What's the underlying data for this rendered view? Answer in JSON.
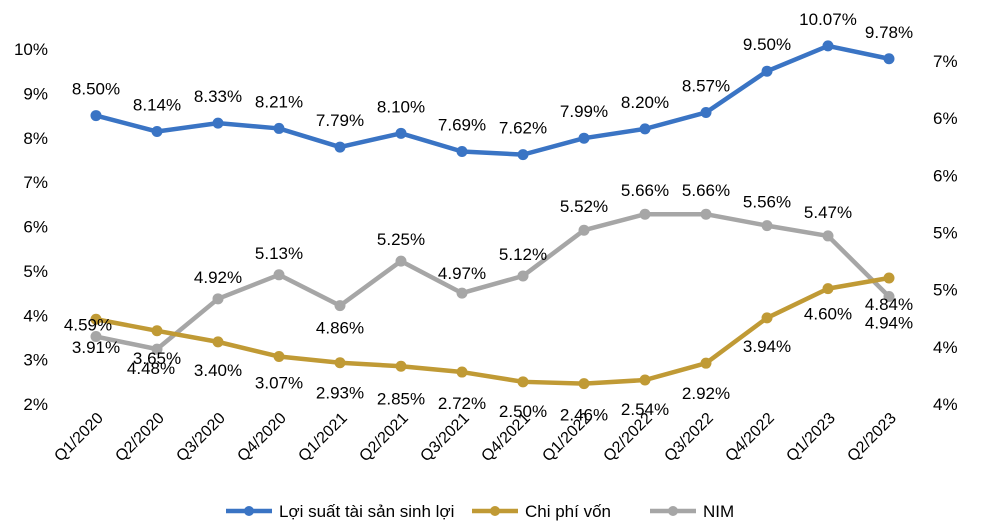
{
  "chart_data": {
    "type": "line",
    "categories": [
      "Q1/2020",
      "Q2/2020",
      "Q3/2020",
      "Q4/2020",
      "Q1/2021",
      "Q2/2021",
      "Q3/2021",
      "Q4/2021",
      "Q1/2022",
      "Q2/2022",
      "Q3/2022",
      "Q4/2022",
      "Q1/2023",
      "Q2/2023"
    ],
    "y_left": {
      "ticks": [
        "2%",
        "3%",
        "4%",
        "5%",
        "6%",
        "7%",
        "8%",
        "9%",
        "10%"
      ],
      "ylim": [
        2,
        10
      ]
    },
    "y_right": {
      "ticks": [
        "4%",
        "4%",
        "5%",
        "5%",
        "6%",
        "6%",
        "7%"
      ],
      "ylim": [
        4,
        7
      ]
    },
    "grid": false,
    "legend_position": "bottom",
    "series": [
      {
        "name": "Lợi suất tài sản sinh lợi",
        "axis": "left",
        "color": "#3A74C4",
        "values": [
          8.5,
          8.14,
          8.33,
          8.21,
          7.79,
          8.1,
          7.69,
          7.62,
          7.99,
          8.2,
          8.57,
          9.5,
          10.07,
          9.78
        ],
        "labels": [
          "8.50%",
          "8.14%",
          "8.33%",
          "8.21%",
          "7.79%",
          "8.10%",
          "7.69%",
          "7.62%",
          "7.99%",
          "8.20%",
          "8.57%",
          "9.50%",
          "10.07%",
          "9.78%"
        ]
      },
      {
        "name": "Chi phí vốn",
        "axis": "left",
        "color": "#C09A35",
        "values": [
          3.91,
          3.65,
          3.4,
          3.07,
          2.93,
          2.85,
          2.72,
          2.5,
          2.46,
          2.54,
          2.92,
          3.94,
          4.6,
          4.84
        ],
        "labels": [
          "3.91%",
          "3.65%",
          "3.40%",
          "3.07%",
          "2.93%",
          "2.85%",
          "2.72%",
          "2.50%",
          "2.46%",
          "2.54%",
          "2.92%",
          "3.94%",
          "4.60%",
          "4.84%"
        ]
      },
      {
        "name": "NIM",
        "axis": "right",
        "color": "#A6A6A6",
        "values": [
          4.59,
          4.48,
          4.92,
          5.13,
          4.86,
          5.25,
          4.97,
          5.12,
          5.52,
          5.66,
          5.66,
          5.56,
          5.47,
          4.94
        ],
        "labels": [
          "4.59%",
          "4.48%",
          "4.92%",
          "5.13%",
          "4.86%",
          "5.25%",
          "4.97%",
          "5.12%",
          "5.52%",
          "5.66%",
          "5.66%",
          "5.56%",
          "5.47%",
          "4.94%"
        ]
      }
    ]
  }
}
